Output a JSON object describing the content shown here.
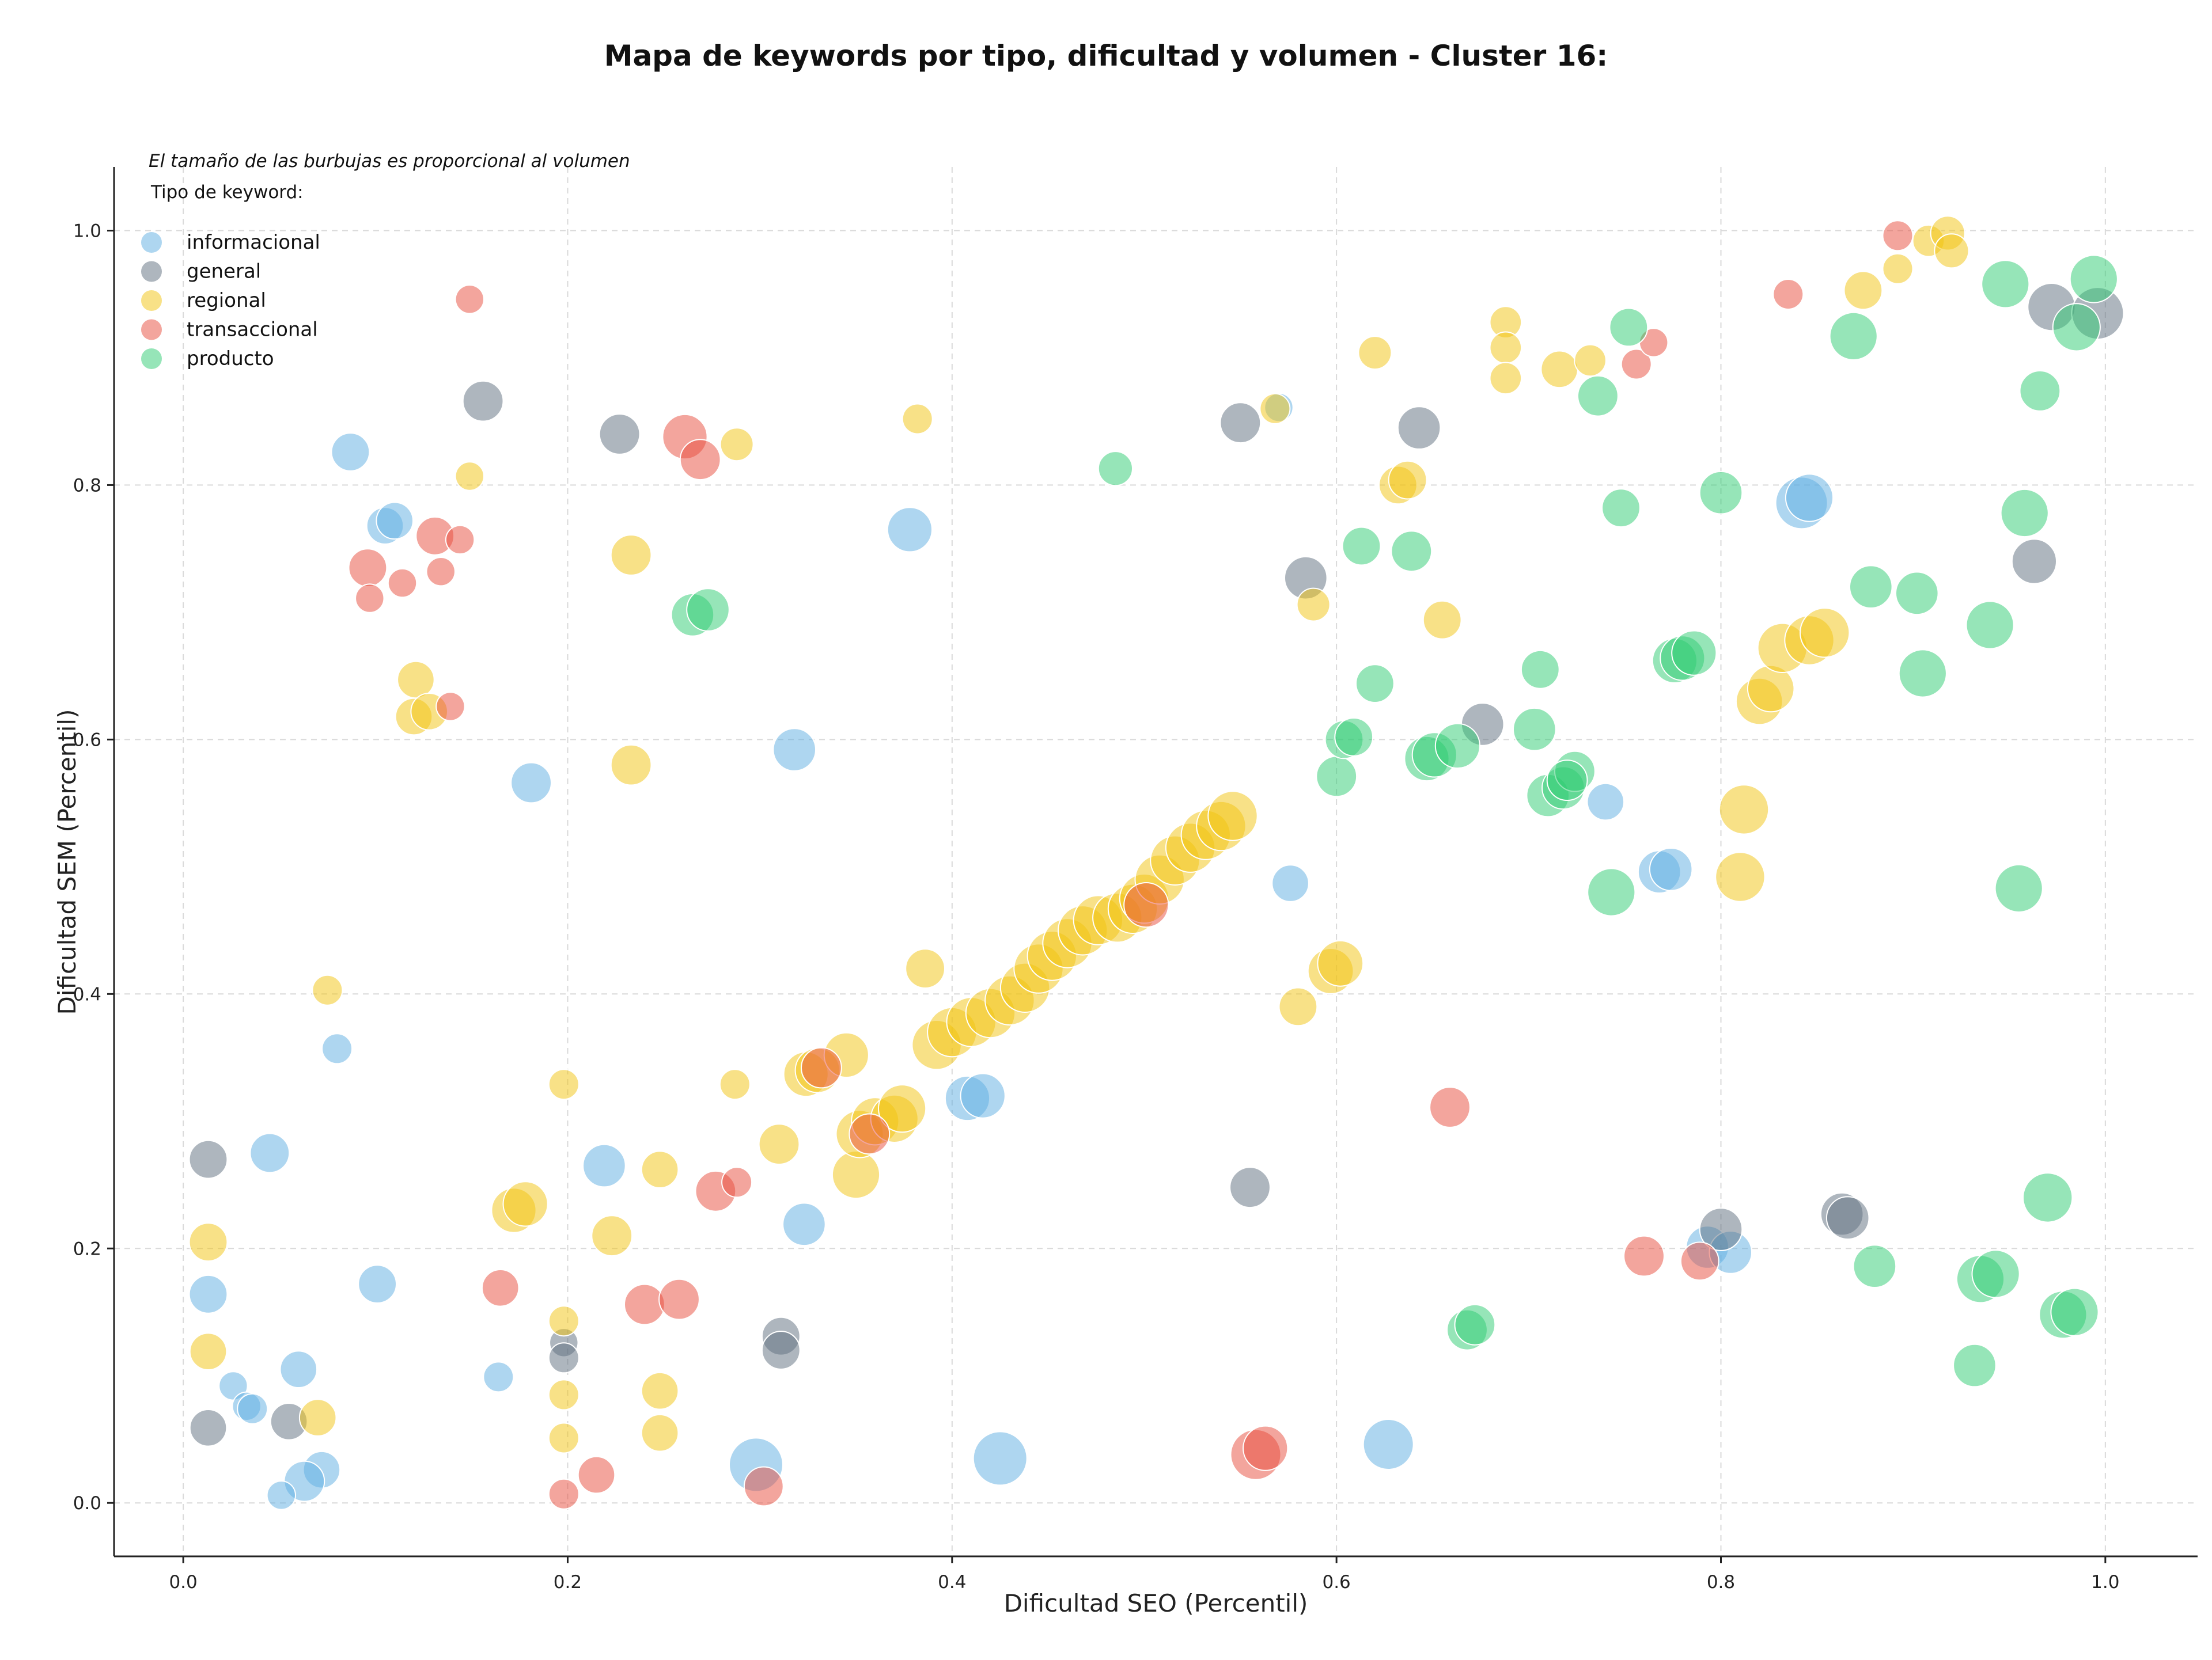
{
  "chart_data": {
    "type": "scatter",
    "title": "Mapa de keywords por tipo, dificultad y volumen - Cluster 16:",
    "xlabel": "Dificultad SEO (Percentil)",
    "ylabel": "Dificultad SEM (Percentil)",
    "xlim": [
      -0.036,
      1.048
    ],
    "ylim": [
      -0.042,
      1.05
    ],
    "xticks": [
      "0.0",
      "0.2",
      "0.4",
      "0.6",
      "0.8",
      "1.0"
    ],
    "yticks": [
      "0.0",
      "0.2",
      "0.4",
      "0.6",
      "0.8",
      "1.0"
    ],
    "grid": true,
    "legend": {
      "note": "El tamaño de las burbujas es proporcional al volumen",
      "title": "Tipo de keyword:",
      "placement": "top-left"
    },
    "size_encoding": "volume",
    "series": [
      {
        "name": "informacional",
        "color": "#5dade2",
        "points": [
          [
            0.087,
            0.826,
            1.6
          ],
          [
            0.105,
            0.768,
            1.5
          ],
          [
            0.11,
            0.772,
            1.5
          ],
          [
            0.181,
            0.566,
            1.8
          ],
          [
            0.08,
            0.357,
            1.0
          ],
          [
            0.045,
            0.275,
            1.7
          ],
          [
            0.013,
            0.164,
            1.6
          ],
          [
            0.101,
            0.172,
            1.6
          ],
          [
            0.06,
            0.105,
            1.5
          ],
          [
            0.026,
            0.092,
            0.9
          ],
          [
            0.033,
            0.076,
            0.9
          ],
          [
            0.036,
            0.074,
            1.0
          ],
          [
            0.072,
            0.026,
            1.5
          ],
          [
            0.063,
            0.017,
            1.8
          ],
          [
            0.051,
            0.006,
            0.9
          ],
          [
            0.164,
            0.099,
            1.0
          ],
          [
            0.219,
            0.265,
            2.0
          ],
          [
            0.323,
            0.219,
            2.0
          ],
          [
            0.318,
            0.592,
            2.0
          ],
          [
            0.378,
            0.765,
            2.2
          ],
          [
            0.408,
            0.318,
            2.2
          ],
          [
            0.416,
            0.32,
            2.2
          ],
          [
            0.298,
            0.03,
            3.2
          ],
          [
            0.425,
            0.035,
            3.2
          ],
          [
            0.627,
            0.046,
            2.8
          ],
          [
            0.576,
            0.487,
            1.5
          ],
          [
            0.57,
            0.861,
            0.9
          ],
          [
            0.74,
            0.551,
            1.5
          ],
          [
            0.768,
            0.496,
            2.0
          ],
          [
            0.774,
            0.498,
            2.0
          ],
          [
            0.842,
            0.786,
            3.0
          ],
          [
            0.846,
            0.79,
            2.5
          ],
          [
            0.793,
            0.201,
            2.0
          ],
          [
            0.805,
            0.197,
            2.0
          ]
        ]
      },
      {
        "name": "general",
        "color": "#5d6d7e",
        "points": [
          [
            0.156,
            0.866,
            1.8
          ],
          [
            0.013,
            0.27,
            1.6
          ],
          [
            0.013,
            0.059,
            1.5
          ],
          [
            0.055,
            0.064,
            1.5
          ],
          [
            0.198,
            0.126,
            0.9
          ],
          [
            0.198,
            0.114,
            1.0
          ],
          [
            0.227,
            0.84,
            1.8
          ],
          [
            0.311,
            0.131,
            1.6
          ],
          [
            0.311,
            0.12,
            1.6
          ],
          [
            0.55,
            0.849,
            1.8
          ],
          [
            0.555,
            0.248,
            1.8
          ],
          [
            0.584,
            0.727,
            2.0
          ],
          [
            0.643,
            0.845,
            2.0
          ],
          [
            0.676,
            0.612,
            2.0
          ],
          [
            0.8,
            0.215,
            2.0
          ],
          [
            0.863,
            0.227,
            2.0
          ],
          [
            0.866,
            0.224,
            2.0
          ],
          [
            0.963,
            0.74,
            2.2
          ],
          [
            0.972,
            0.94,
            2.5
          ],
          [
            0.996,
            0.935,
            3.0
          ]
        ]
      },
      {
        "name": "regional",
        "color": "#f1c40f",
        "points": [
          [
            0.149,
            0.807,
            0.9
          ],
          [
            0.121,
            0.647,
            1.5
          ],
          [
            0.12,
            0.618,
            1.5
          ],
          [
            0.128,
            0.622,
            1.5
          ],
          [
            0.233,
            0.745,
            1.8
          ],
          [
            0.288,
            0.832,
            1.2
          ],
          [
            0.233,
            0.58,
            1.8
          ],
          [
            0.075,
            0.403,
            1.0
          ],
          [
            0.013,
            0.205,
            1.6
          ],
          [
            0.013,
            0.119,
            1.5
          ],
          [
            0.07,
            0.067,
            1.5
          ],
          [
            0.198,
            0.329,
            1.0
          ],
          [
            0.198,
            0.143,
            1.0
          ],
          [
            0.198,
            0.085,
            1.0
          ],
          [
            0.198,
            0.051,
            1.0
          ],
          [
            0.172,
            0.23,
            2.2
          ],
          [
            0.178,
            0.235,
            2.2
          ],
          [
            0.223,
            0.21,
            1.8
          ],
          [
            0.248,
            0.262,
            1.5
          ],
          [
            0.248,
            0.088,
            1.5
          ],
          [
            0.248,
            0.055,
            1.5
          ],
          [
            0.287,
            0.329,
            1.0
          ],
          [
            0.31,
            0.282,
            1.8
          ],
          [
            0.382,
            0.852,
            1.0
          ],
          [
            0.386,
            0.42,
            1.7
          ],
          [
            0.324,
            0.337,
            2.2
          ],
          [
            0.33,
            0.34,
            2.2
          ],
          [
            0.345,
            0.352,
            2.2
          ],
          [
            0.35,
            0.258,
            2.5
          ],
          [
            0.352,
            0.29,
            2.5
          ],
          [
            0.36,
            0.3,
            2.5
          ],
          [
            0.37,
            0.302,
            2.5
          ],
          [
            0.374,
            0.31,
            2.5
          ],
          [
            0.392,
            0.36,
            2.7
          ],
          [
            0.4,
            0.37,
            2.7
          ],
          [
            0.41,
            0.378,
            2.7
          ],
          [
            0.42,
            0.385,
            2.7
          ],
          [
            0.43,
            0.395,
            2.7
          ],
          [
            0.438,
            0.405,
            2.7
          ],
          [
            0.445,
            0.42,
            2.7
          ],
          [
            0.452,
            0.43,
            2.7
          ],
          [
            0.46,
            0.44,
            2.7
          ],
          [
            0.468,
            0.45,
            2.7
          ],
          [
            0.476,
            0.458,
            2.7
          ],
          [
            0.486,
            0.46,
            2.7
          ],
          [
            0.494,
            0.467,
            2.7
          ],
          [
            0.5,
            0.475,
            2.7
          ],
          [
            0.508,
            0.49,
            2.7
          ],
          [
            0.516,
            0.505,
            2.7
          ],
          [
            0.524,
            0.515,
            2.7
          ],
          [
            0.532,
            0.525,
            2.7
          ],
          [
            0.54,
            0.532,
            2.7
          ],
          [
            0.546,
            0.54,
            2.7
          ],
          [
            0.568,
            0.86,
            1.0
          ],
          [
            0.588,
            0.706,
            1.2
          ],
          [
            0.58,
            0.39,
            1.6
          ],
          [
            0.597,
            0.418,
            2.3
          ],
          [
            0.602,
            0.424,
            2.3
          ],
          [
            0.62,
            0.904,
            1.2
          ],
          [
            0.632,
            0.8,
            1.6
          ],
          [
            0.637,
            0.804,
            1.6
          ],
          [
            0.655,
            0.694,
            1.6
          ],
          [
            0.688,
            0.928,
            1.1
          ],
          [
            0.688,
            0.908,
            1.1
          ],
          [
            0.688,
            0.884,
            1.1
          ],
          [
            0.716,
            0.891,
            1.5
          ],
          [
            0.732,
            0.898,
            1.1
          ],
          [
            0.82,
            0.63,
            2.4
          ],
          [
            0.826,
            0.64,
            2.4
          ],
          [
            0.832,
            0.672,
            2.7
          ],
          [
            0.846,
            0.678,
            2.7
          ],
          [
            0.854,
            0.684,
            2.7
          ],
          [
            0.812,
            0.545,
            2.7
          ],
          [
            0.81,
            0.492,
            2.7
          ],
          [
            0.874,
            0.953,
            1.6
          ],
          [
            0.892,
            0.97,
            1.0
          ],
          [
            0.908,
            0.992,
            1.1
          ],
          [
            0.918,
            0.998,
            1.3
          ],
          [
            0.92,
            0.984,
            1.3
          ]
        ]
      },
      {
        "name": "transaccional",
        "color": "#e74c3c",
        "points": [
          [
            0.149,
            0.946,
            0.9
          ],
          [
            0.096,
            0.735,
            1.6
          ],
          [
            0.097,
            0.711,
            0.9
          ],
          [
            0.114,
            0.723,
            0.9
          ],
          [
            0.131,
            0.76,
            1.6
          ],
          [
            0.144,
            0.757,
            0.9
          ],
          [
            0.134,
            0.732,
            0.9
          ],
          [
            0.139,
            0.626,
            0.9
          ],
          [
            0.261,
            0.838,
            2.2
          ],
          [
            0.269,
            0.82,
            1.8
          ],
          [
            0.165,
            0.169,
            1.5
          ],
          [
            0.198,
            0.007,
            1.0
          ],
          [
            0.215,
            0.022,
            1.5
          ],
          [
            0.24,
            0.156,
            1.8
          ],
          [
            0.258,
            0.16,
            1.8
          ],
          [
            0.277,
            0.245,
            1.8
          ],
          [
            0.288,
            0.252,
            1.0
          ],
          [
            0.302,
            0.013,
            1.7
          ],
          [
            0.332,
            0.342,
            1.8
          ],
          [
            0.357,
            0.29,
            1.8
          ],
          [
            0.501,
            0.47,
            2.2
          ],
          [
            0.558,
            0.038,
            2.8
          ],
          [
            0.563,
            0.043,
            2.2
          ],
          [
            0.659,
            0.311,
            1.8
          ],
          [
            0.76,
            0.194,
            1.8
          ],
          [
            0.789,
            0.19,
            1.6
          ],
          [
            0.756,
            0.895,
            1.0
          ],
          [
            0.765,
            0.912,
            0.9
          ],
          [
            0.835,
            0.95,
            1.0
          ],
          [
            0.892,
            0.996,
            1.0
          ]
        ]
      },
      {
        "name": "producto",
        "color": "#2ecc71",
        "points": [
          [
            0.265,
            0.698,
            2.0
          ],
          [
            0.273,
            0.702,
            2.0
          ],
          [
            0.485,
            0.813,
            1.3
          ],
          [
            0.613,
            0.752,
            1.6
          ],
          [
            0.62,
            0.644,
            1.6
          ],
          [
            0.6,
            0.571,
            1.8
          ],
          [
            0.604,
            0.6,
            1.6
          ],
          [
            0.609,
            0.602,
            1.6
          ],
          [
            0.639,
            0.748,
            1.8
          ],
          [
            0.647,
            0.585,
            2.2
          ],
          [
            0.651,
            0.588,
            2.2
          ],
          [
            0.663,
            0.595,
            2.2
          ],
          [
            0.703,
            0.608,
            2.0
          ],
          [
            0.706,
            0.655,
            1.6
          ],
          [
            0.71,
            0.556,
            2.0
          ],
          [
            0.718,
            0.562,
            2.0
          ],
          [
            0.724,
            0.575,
            1.8
          ],
          [
            0.72,
            0.568,
            1.8
          ],
          [
            0.736,
            0.87,
            1.8
          ],
          [
            0.743,
            0.48,
            2.5
          ],
          [
            0.748,
            0.782,
            1.6
          ],
          [
            0.752,
            0.924,
            1.6
          ],
          [
            0.776,
            0.662,
            2.2
          ],
          [
            0.78,
            0.664,
            2.2
          ],
          [
            0.786,
            0.668,
            2.2
          ],
          [
            0.8,
            0.794,
            2.0
          ],
          [
            0.668,
            0.136,
            1.8
          ],
          [
            0.672,
            0.14,
            1.8
          ],
          [
            0.869,
            0.917,
            2.5
          ],
          [
            0.878,
            0.72,
            2.0
          ],
          [
            0.88,
            0.186,
            2.0
          ],
          [
            0.902,
            0.715,
            2.0
          ],
          [
            0.905,
            0.652,
            2.5
          ],
          [
            0.935,
            0.176,
            2.5
          ],
          [
            0.943,
            0.18,
            2.5
          ],
          [
            0.94,
            0.69,
            2.5
          ],
          [
            0.932,
            0.108,
            2.0
          ],
          [
            0.948,
            0.958,
            2.5
          ],
          [
            0.958,
            0.778,
            2.5
          ],
          [
            0.966,
            0.874,
            1.8
          ],
          [
            0.97,
            0.24,
            2.7
          ],
          [
            0.955,
            0.483,
            2.5
          ],
          [
            0.978,
            0.148,
            2.5
          ],
          [
            0.984,
            0.15,
            2.5
          ],
          [
            0.985,
            0.924,
            2.5
          ],
          [
            0.994,
            0.962,
            2.5
          ]
        ]
      }
    ]
  }
}
